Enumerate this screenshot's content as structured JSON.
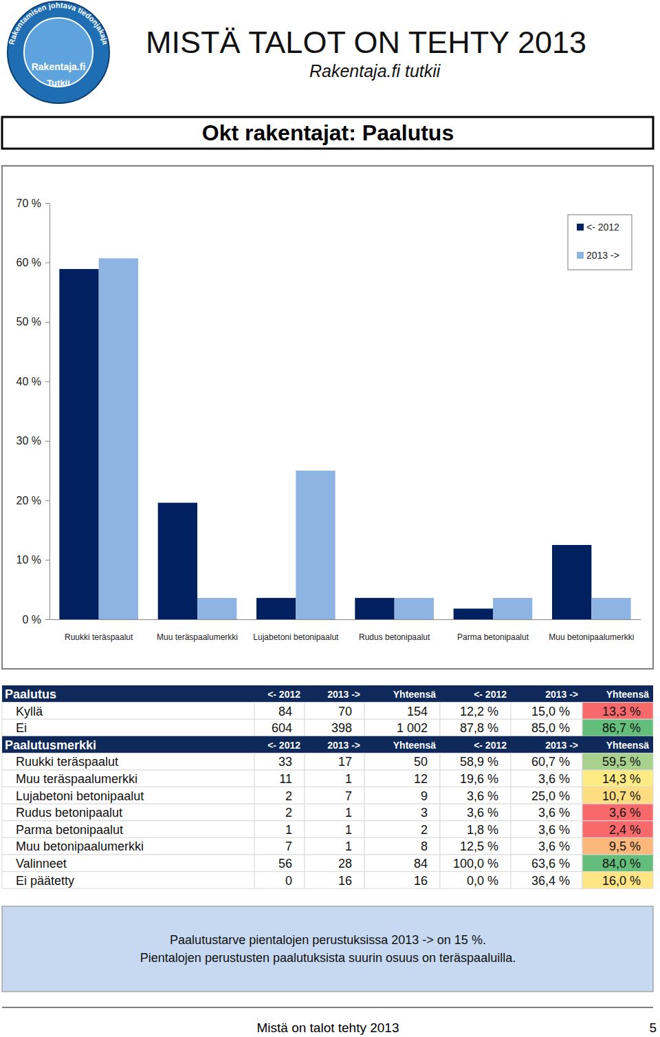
{
  "header": {
    "title": "MISTÄ TALOT ON TEHTY 2013",
    "subtitle": "Rakentaja.fi tutkii",
    "logo": {
      "ring": "Rakentamisen johtava tiedonjakaja",
      "name": "Rakentaja.fi",
      "tag": "Tutkii"
    }
  },
  "chart_data": {
    "type": "bar",
    "title": "Okt rakentajat: Paalutus",
    "categories": [
      "Ruukki teräspaalut",
      "Muu teräspaalumerkki",
      "Lujabetoni betonipaalut",
      "Rudus betonipaalut",
      "Parma betonipaalut",
      "Muu betonipaalumerkki"
    ],
    "series": [
      {
        "name": "<- 2012",
        "color": "#002060",
        "values": [
          58.9,
          19.6,
          3.6,
          3.6,
          1.8,
          12.5
        ]
      },
      {
        "name": "2013 ->",
        "color": "#8db4e2",
        "values": [
          60.7,
          3.6,
          25.0,
          3.6,
          3.6,
          3.6
        ]
      }
    ],
    "ylim": [
      0,
      70
    ],
    "yticks": [
      {
        "value": 0,
        "label": "0 %"
      },
      {
        "value": 10,
        "label": "10 %"
      },
      {
        "value": 20,
        "label": "20 %"
      },
      {
        "value": 30,
        "label": "30 %"
      },
      {
        "value": 40,
        "label": "40 %"
      },
      {
        "value": 50,
        "label": "50 %"
      },
      {
        "value": 60,
        "label": "60 %"
      },
      {
        "value": 70,
        "label": "70 %"
      }
    ],
    "grid": false,
    "legend": "upper right"
  },
  "table": {
    "sections": [
      {
        "header": [
          "Paalutus",
          "<- 2012",
          "2013 ->",
          "Yhteensä",
          "<- 2012",
          "2013 ->",
          "Yhteensä"
        ],
        "rows": [
          [
            "Kyllä",
            "84",
            "70",
            "154",
            "12,2 %",
            "15,0 %",
            "13,3 %"
          ],
          [
            "Ei",
            "604",
            "398",
            "1 002",
            "87,8 %",
            "85,0 %",
            "86,7 %"
          ]
        ]
      },
      {
        "header": [
          "Paalutusmerkki",
          "<- 2012",
          "2013 ->",
          "Yhteensä",
          "<- 2012",
          "2013 ->",
          "Yhteensä"
        ],
        "rows": [
          [
            "Ruukki teräspaalut",
            "33",
            "17",
            "50",
            "58,9 %",
            "60,7 %",
            "59,5 %"
          ],
          [
            "Muu teräspaalumerkki",
            "11",
            "1",
            "12",
            "19,6 %",
            "3,6 %",
            "14,3 %"
          ],
          [
            "Lujabetoni betonipaalut",
            "2",
            "7",
            "9",
            "3,6 %",
            "25,0 %",
            "10,7 %"
          ],
          [
            "Rudus betonipaalut",
            "2",
            "1",
            "3",
            "3,6 %",
            "3,6 %",
            "3,6 %"
          ],
          [
            "Parma betonipaalut",
            "1",
            "1",
            "2",
            "1,8 %",
            "3,6 %",
            "2,4 %"
          ],
          [
            "Muu betonipaalumerkki",
            "7",
            "1",
            "8",
            "12,5 %",
            "3,6 %",
            "9,5 %"
          ],
          [
            "Valinneet",
            "56",
            "28",
            "84",
            "100,0 %",
            "63,6 %",
            "84,0 %"
          ],
          [
            "Ei päätetty",
            "0",
            "16",
            "16",
            "0,0 %",
            "36,4 %",
            "16,0 %"
          ]
        ]
      }
    ]
  },
  "note": [
    "Paalutustarve pientalojen perustuksissa  2013 -> on 15  %.",
    "Pientalojen perustusten paalutuksista suurin osuus on teräspaaluilla."
  ],
  "footer": {
    "text": "Mistä on talot tehty 2013",
    "page": "5"
  }
}
